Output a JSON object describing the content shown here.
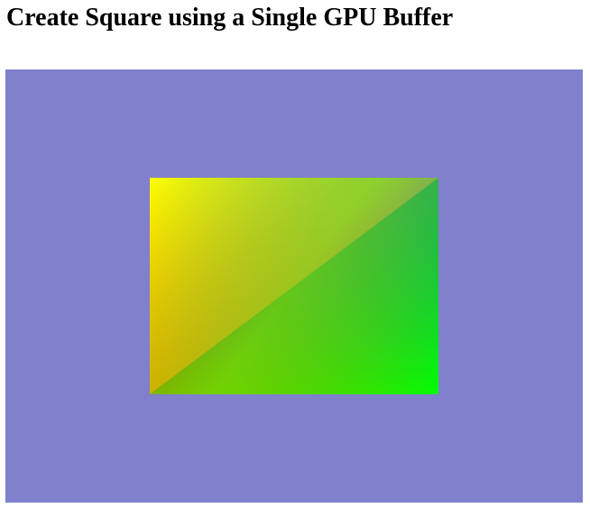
{
  "page": {
    "title": "Create Square using a Single GPU Buffer"
  },
  "canvas": {
    "clear_color": "#8080cc",
    "square": {
      "vertex_colors": {
        "top_left": "#ffff00",
        "top_right": "#0000ff",
        "bottom_left": "#ff0000",
        "bottom_right": "#00ff00"
      }
    }
  }
}
